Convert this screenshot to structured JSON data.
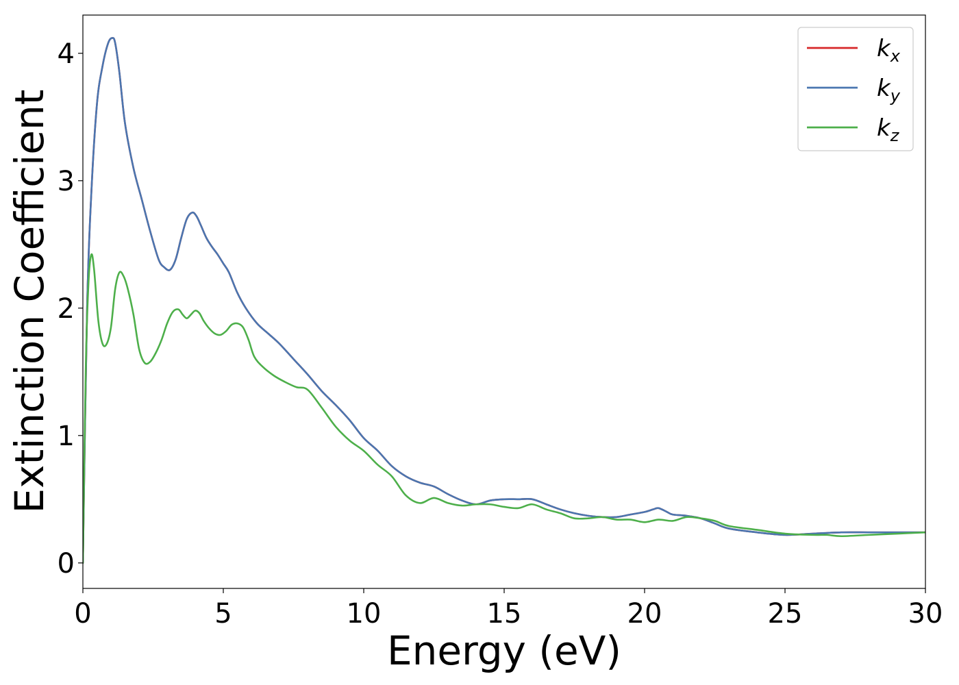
{
  "chart_data": {
    "type": "line",
    "title": "",
    "xlabel": "Energy (eV)",
    "ylabel": "Extinction Coefficient",
    "xlim": [
      0,
      30
    ],
    "ylim": [
      -0.2,
      4.3
    ],
    "xticks": [
      0,
      5,
      10,
      15,
      20,
      25,
      30
    ],
    "xtick_labels": [
      "0",
      "5",
      "10",
      "15",
      "20",
      "25",
      "30"
    ],
    "yticks": [
      0,
      1,
      2,
      3,
      4
    ],
    "ytick_labels": [
      "0",
      "1",
      "2",
      "3",
      "4"
    ],
    "grid": false,
    "legend": {
      "position": "top-right"
    },
    "series": [
      {
        "name_main": "k",
        "name_sub": "x",
        "color": "#d62728",
        "x": [
          0,
          0.15,
          0.3,
          0.5,
          0.7,
          0.9,
          1.05,
          1.15,
          1.3,
          1.5,
          1.8,
          2.1,
          2.4,
          2.7,
          2.9,
          3.1,
          3.3,
          3.5,
          3.7,
          3.9,
          4.05,
          4.2,
          4.4,
          4.6,
          4.8,
          5.0,
          5.2,
          5.5,
          5.8,
          6.2,
          6.6,
          7.0,
          7.5,
          8.0,
          8.5,
          9.0,
          9.5,
          10.0,
          10.5,
          11.0,
          11.5,
          12.0,
          12.5,
          13.0,
          13.5,
          14.0,
          14.5,
          15.0,
          15.5,
          16.0,
          16.5,
          17.0,
          17.5,
          18.0,
          18.5,
          19.0,
          19.5,
          20.0,
          20.3,
          20.5,
          20.8,
          21.0,
          21.5,
          22.0,
          22.5,
          23.0,
          24.0,
          25.0,
          26.0,
          27.0,
          28.0,
          29.0,
          30.0
        ],
        "y": [
          0.0,
          2.0,
          2.9,
          3.6,
          3.9,
          4.08,
          4.12,
          4.08,
          3.85,
          3.45,
          3.1,
          2.85,
          2.6,
          2.38,
          2.32,
          2.3,
          2.38,
          2.55,
          2.7,
          2.75,
          2.72,
          2.65,
          2.55,
          2.48,
          2.42,
          2.35,
          2.28,
          2.12,
          2.0,
          1.88,
          1.8,
          1.72,
          1.6,
          1.48,
          1.35,
          1.24,
          1.12,
          0.98,
          0.88,
          0.76,
          0.68,
          0.63,
          0.6,
          0.54,
          0.49,
          0.46,
          0.49,
          0.5,
          0.5,
          0.5,
          0.46,
          0.42,
          0.39,
          0.37,
          0.36,
          0.36,
          0.38,
          0.4,
          0.42,
          0.43,
          0.4,
          0.38,
          0.37,
          0.35,
          0.31,
          0.27,
          0.24,
          0.22,
          0.23,
          0.24,
          0.24,
          0.24,
          0.24
        ]
      },
      {
        "name_main": "k",
        "name_sub": "y",
        "color": "#4a76b0",
        "x": [
          0,
          0.15,
          0.3,
          0.5,
          0.7,
          0.9,
          1.05,
          1.15,
          1.3,
          1.5,
          1.8,
          2.1,
          2.4,
          2.7,
          2.9,
          3.1,
          3.3,
          3.5,
          3.7,
          3.9,
          4.05,
          4.2,
          4.4,
          4.6,
          4.8,
          5.0,
          5.2,
          5.5,
          5.8,
          6.2,
          6.6,
          7.0,
          7.5,
          8.0,
          8.5,
          9.0,
          9.5,
          10.0,
          10.5,
          11.0,
          11.5,
          12.0,
          12.5,
          13.0,
          13.5,
          14.0,
          14.5,
          15.0,
          15.5,
          16.0,
          16.5,
          17.0,
          17.5,
          18.0,
          18.5,
          19.0,
          19.5,
          20.0,
          20.3,
          20.5,
          20.8,
          21.0,
          21.5,
          22.0,
          22.5,
          23.0,
          24.0,
          25.0,
          26.0,
          27.0,
          28.0,
          29.0,
          30.0
        ],
        "y": [
          0.0,
          2.0,
          2.9,
          3.6,
          3.9,
          4.08,
          4.12,
          4.08,
          3.85,
          3.45,
          3.1,
          2.85,
          2.6,
          2.38,
          2.32,
          2.3,
          2.38,
          2.55,
          2.7,
          2.75,
          2.72,
          2.65,
          2.55,
          2.48,
          2.42,
          2.35,
          2.28,
          2.12,
          2.0,
          1.88,
          1.8,
          1.72,
          1.6,
          1.48,
          1.35,
          1.24,
          1.12,
          0.98,
          0.88,
          0.76,
          0.68,
          0.63,
          0.6,
          0.54,
          0.49,
          0.46,
          0.49,
          0.5,
          0.5,
          0.5,
          0.46,
          0.42,
          0.39,
          0.37,
          0.36,
          0.36,
          0.38,
          0.4,
          0.42,
          0.43,
          0.4,
          0.38,
          0.37,
          0.35,
          0.31,
          0.27,
          0.24,
          0.22,
          0.23,
          0.24,
          0.24,
          0.24,
          0.24
        ]
      },
      {
        "name_main": "k",
        "name_sub": "z",
        "color": "#4daf4a",
        "x": [
          0,
          0.1,
          0.2,
          0.3,
          0.4,
          0.55,
          0.7,
          0.85,
          1.0,
          1.15,
          1.3,
          1.45,
          1.6,
          1.8,
          2.0,
          2.2,
          2.4,
          2.6,
          2.8,
          3.0,
          3.2,
          3.4,
          3.55,
          3.7,
          3.85,
          4.0,
          4.15,
          4.3,
          4.5,
          4.7,
          4.9,
          5.1,
          5.3,
          5.5,
          5.7,
          5.9,
          6.1,
          6.4,
          6.8,
          7.2,
          7.6,
          8.0,
          8.5,
          9.0,
          9.5,
          10.0,
          10.5,
          11.0,
          11.5,
          12.0,
          12.5,
          13.0,
          13.5,
          14.0,
          14.5,
          15.0,
          15.5,
          16.0,
          16.5,
          17.0,
          17.5,
          18.0,
          18.5,
          19.0,
          19.5,
          20.0,
          20.5,
          21.0,
          21.5,
          22.0,
          22.5,
          23.0,
          24.0,
          25.0,
          26.0,
          26.5,
          27.0,
          28.0,
          29.0,
          30.0
        ],
        "y": [
          0.0,
          1.5,
          2.2,
          2.42,
          2.3,
          1.9,
          1.72,
          1.72,
          1.85,
          2.15,
          2.28,
          2.25,
          2.15,
          1.95,
          1.68,
          1.57,
          1.58,
          1.65,
          1.75,
          1.88,
          1.97,
          1.99,
          1.95,
          1.92,
          1.95,
          1.98,
          1.96,
          1.9,
          1.84,
          1.8,
          1.79,
          1.82,
          1.87,
          1.88,
          1.85,
          1.75,
          1.62,
          1.54,
          1.47,
          1.42,
          1.38,
          1.36,
          1.22,
          1.07,
          0.96,
          0.88,
          0.77,
          0.68,
          0.53,
          0.47,
          0.51,
          0.47,
          0.45,
          0.46,
          0.46,
          0.44,
          0.43,
          0.46,
          0.42,
          0.39,
          0.35,
          0.35,
          0.36,
          0.34,
          0.34,
          0.32,
          0.34,
          0.33,
          0.36,
          0.35,
          0.33,
          0.29,
          0.26,
          0.23,
          0.22,
          0.22,
          0.21,
          0.22,
          0.23,
          0.24
        ]
      }
    ]
  }
}
